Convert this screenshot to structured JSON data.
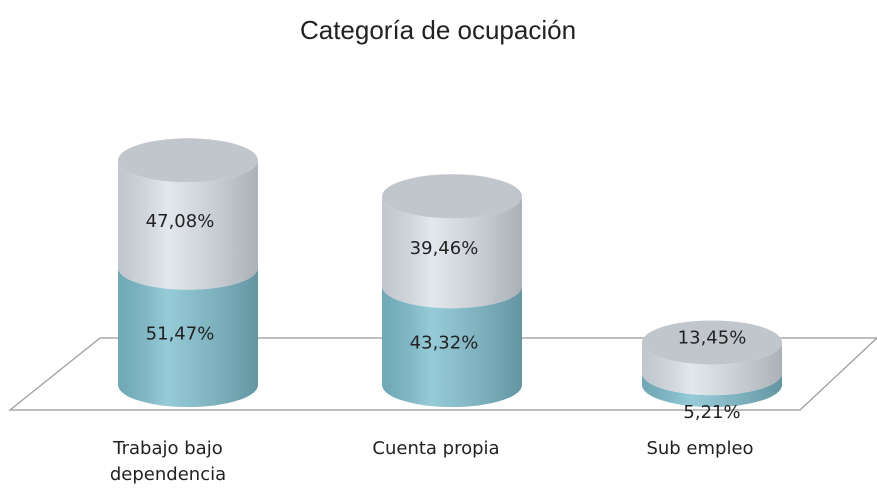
{
  "chart_data": {
    "type": "bar3d_stacked",
    "title": "Categoría de ocupación",
    "categories": [
      "Trabajo bajo dependencia",
      "Cuenta propia",
      "Sub empleo"
    ],
    "series": [
      {
        "color": "#7fbfcf",
        "values": [
          51.47,
          43.32,
          5.21
        ],
        "value_labels": [
          "51,47%",
          "43,32%",
          "5,21%"
        ]
      },
      {
        "color": "#dce2ea",
        "values": [
          47.08,
          39.46,
          13.45
        ],
        "value_labels": [
          "47,08%",
          "39,46%",
          "13,45%"
        ]
      }
    ]
  }
}
